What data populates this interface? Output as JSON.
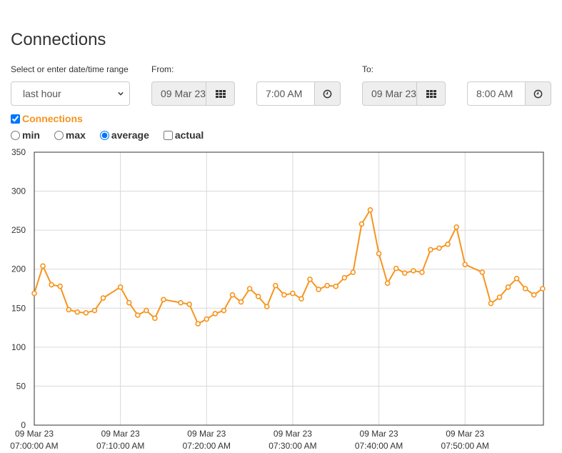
{
  "page": {
    "title": "Connections"
  },
  "controls": {
    "range_label": "Select or enter date/time range",
    "range_value": "last hour",
    "from_label": "From:",
    "from_date": "09 Mar 23",
    "from_time": "7:00 AM",
    "to_label": "To:",
    "to_date": "09 Mar 23",
    "to_time": "8:00 AM",
    "calendar_icon": "calendar-grid-icon",
    "clock_icon": "clock-icon"
  },
  "series_toggle": {
    "label": "Connections",
    "checked": true,
    "color": "#f7941d"
  },
  "modes": [
    {
      "label": "min",
      "type": "radio",
      "checked": false
    },
    {
      "label": "max",
      "type": "radio",
      "checked": false
    },
    {
      "label": "average",
      "type": "radio",
      "checked": true
    },
    {
      "label": "actual",
      "type": "checkbox",
      "checked": false
    }
  ],
  "chart_data": {
    "type": "line",
    "title": "",
    "xlabel": "",
    "ylabel": "",
    "ylim": [
      0,
      350
    ],
    "xlim_minutes": [
      0,
      59.1
    ],
    "yticks": [
      0,
      50,
      100,
      150,
      200,
      250,
      300,
      350
    ],
    "xticks": [
      {
        "minute": 0,
        "date": "09 Mar 23",
        "time": "07:00:00 AM"
      },
      {
        "minute": 10,
        "date": "09 Mar 23",
        "time": "07:10:00 AM"
      },
      {
        "minute": 20,
        "date": "09 Mar 23",
        "time": "07:20:00 AM"
      },
      {
        "minute": 30,
        "date": "09 Mar 23",
        "time": "07:30:00 AM"
      },
      {
        "minute": 40,
        "date": "09 Mar 23",
        "time": "07:40:00 AM"
      },
      {
        "minute": 50,
        "date": "09 Mar 23",
        "time": "07:50:00 AM"
      }
    ],
    "grid": true,
    "color": "#f7941d",
    "series": [
      {
        "x": [
          0,
          1,
          2,
          3,
          4,
          5,
          6,
          7,
          8,
          10,
          11,
          12,
          13,
          14,
          15,
          17,
          18,
          19,
          20,
          21,
          22,
          23,
          24,
          25,
          26,
          27,
          28,
          29,
          30,
          31,
          32,
          33,
          34,
          35,
          36,
          37,
          38,
          39,
          40,
          41,
          42,
          43,
          44,
          45,
          46,
          47,
          48,
          49,
          50,
          52,
          53,
          54,
          55,
          56,
          57,
          58,
          59
        ],
        "y": [
          169,
          204,
          180,
          178,
          148,
          145,
          144,
          147,
          163,
          177,
          157,
          141,
          147,
          137,
          161,
          157,
          155,
          130,
          136,
          143,
          147,
          167,
          158,
          175,
          165,
          152,
          179,
          167,
          169,
          162,
          187,
          174,
          179,
          178,
          189,
          196,
          258,
          276,
          220,
          182,
          201,
          195,
          198,
          196,
          225,
          227,
          232,
          254,
          206,
          196,
          156,
          164,
          177,
          188,
          175,
          167,
          175
        ]
      }
    ]
  }
}
